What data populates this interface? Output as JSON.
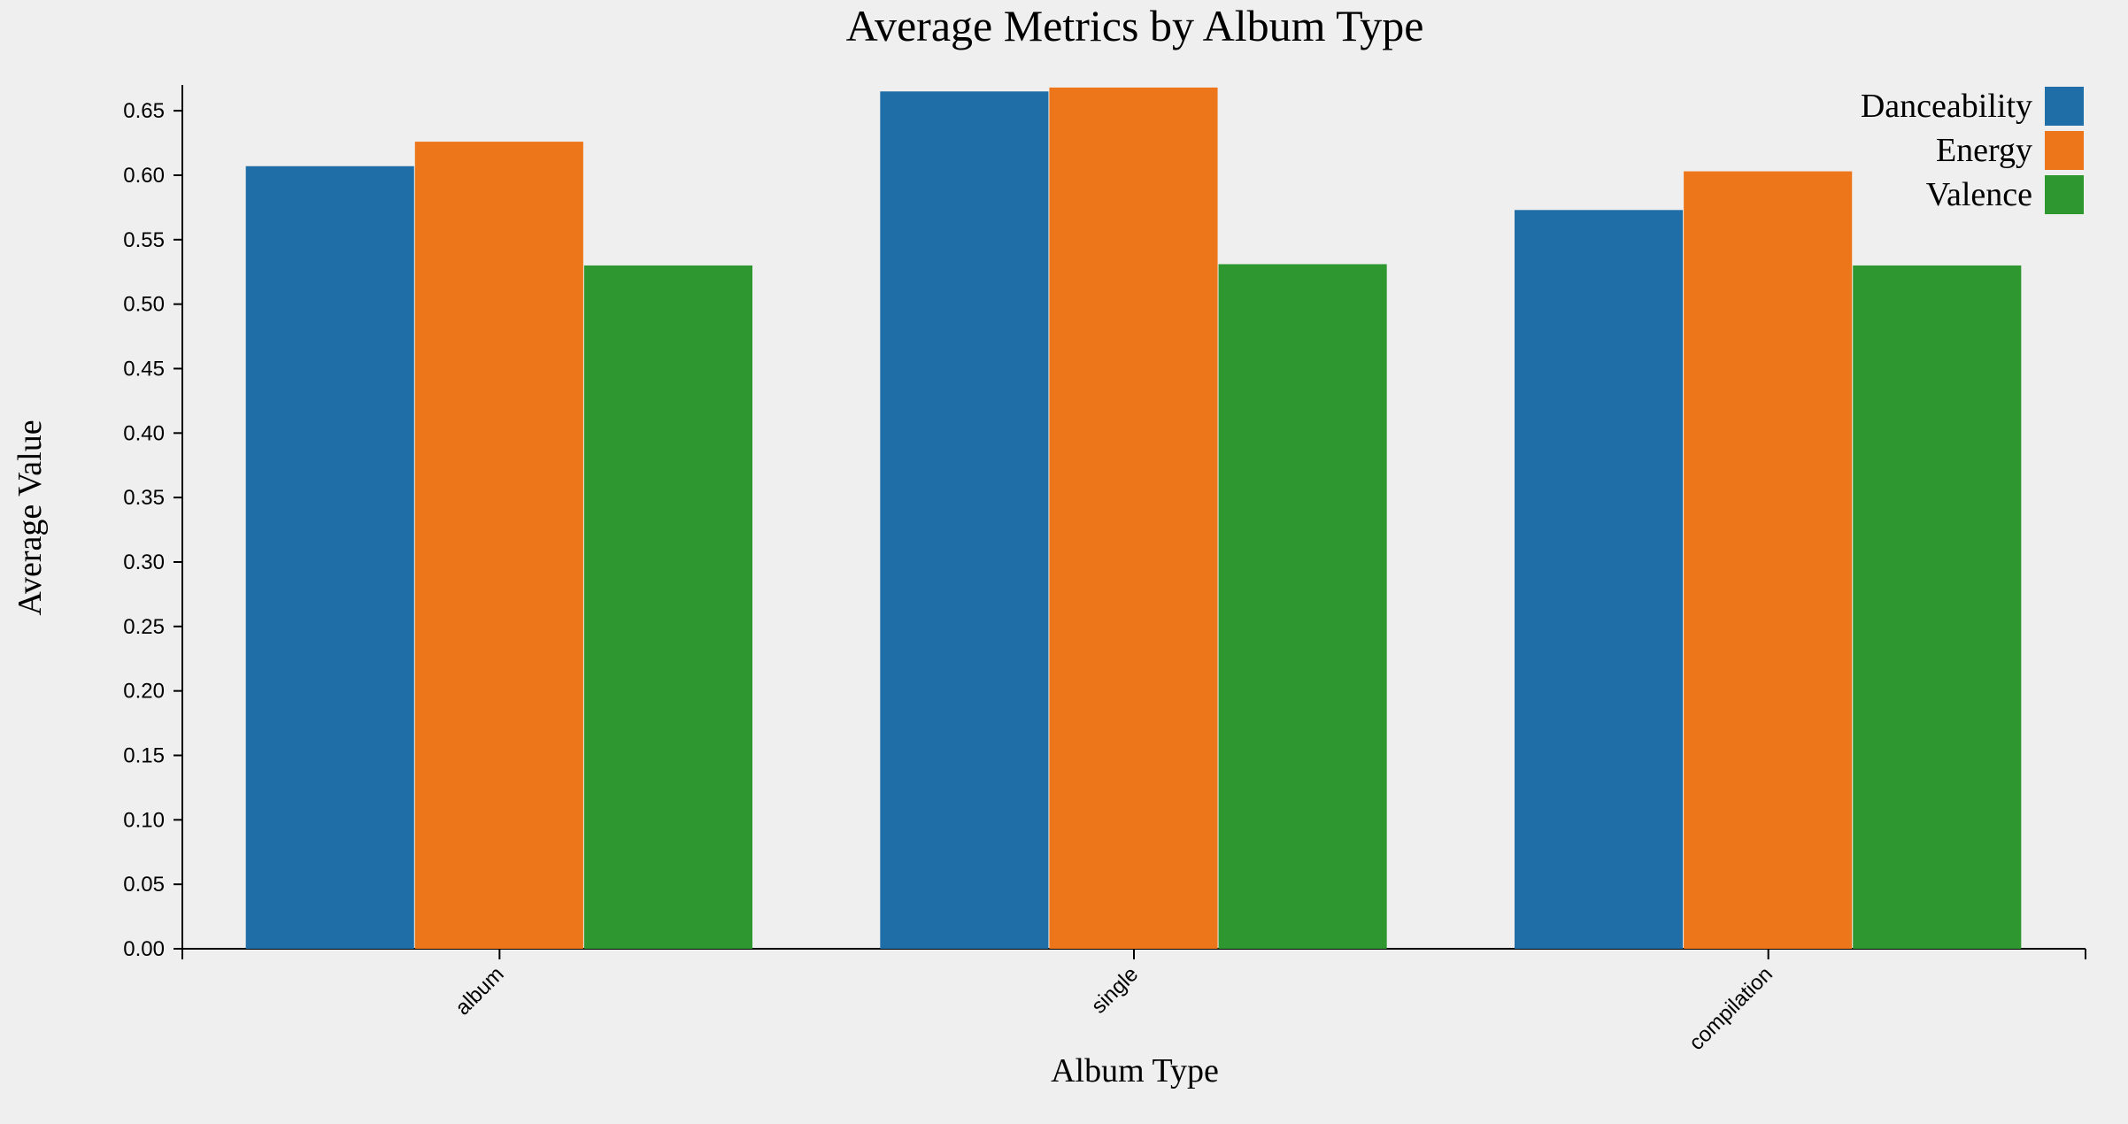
{
  "chart_data": {
    "type": "bar",
    "title": "Average Metrics by Album Type",
    "xlabel": "Album Type",
    "ylabel": "Average Value",
    "categories": [
      "album",
      "single",
      "compilation"
    ],
    "series": [
      {
        "name": "Danceability",
        "color": "#1f6ea7",
        "values": [
          0.607,
          0.665,
          0.573
        ]
      },
      {
        "name": "Energy",
        "color": "#ee761a",
        "values": [
          0.626,
          0.668,
          0.603
        ]
      },
      {
        "name": "Valence",
        "color": "#2f9730",
        "values": [
          0.53,
          0.531,
          0.53
        ]
      }
    ],
    "ylim": [
      0,
      0.67
    ],
    "yticks": [
      "0.00",
      "0.05",
      "0.10",
      "0.15",
      "0.20",
      "0.25",
      "0.30",
      "0.35",
      "0.40",
      "0.45",
      "0.50",
      "0.55",
      "0.60",
      "0.65"
    ],
    "legend_position": "top-right",
    "grid": false
  }
}
